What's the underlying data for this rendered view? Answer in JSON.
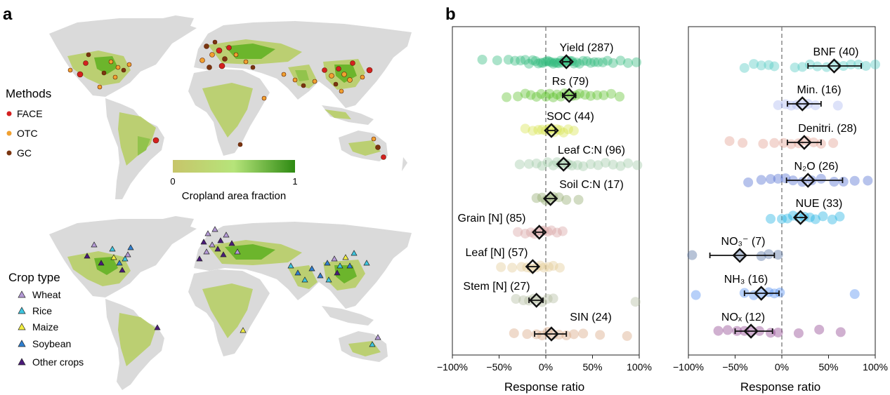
{
  "panel_a": {
    "label": "a",
    "methods_title": "Methods",
    "methods": [
      {
        "name": "FACE",
        "color": "#d42020"
      },
      {
        "name": "OTC",
        "color": "#f0a030"
      },
      {
        "name": "GC",
        "color": "#7a3510"
      }
    ],
    "colorbar": {
      "min_label": "0",
      "max_label": "1",
      "title": "Cropland area fraction",
      "color_low": "#c7c56a",
      "color_mid": "#b6e47a",
      "color_high": "#2e8a12"
    },
    "croptype_title": "Crop type",
    "crops": [
      {
        "name": "Wheat",
        "color": "#b49ad6"
      },
      {
        "name": "Rice",
        "color": "#3ec6e0"
      },
      {
        "name": "Maize",
        "color": "#f4f040"
      },
      {
        "name": "Soybean",
        "color": "#2f7fd0"
      },
      {
        "name": "Other crops",
        "color": "#4a1a7a"
      }
    ],
    "map_colors": {
      "land": "#dadada",
      "cropland": "#b9cf6a",
      "dense": "#63b21e"
    }
  },
  "panel_b": {
    "label": "b",
    "chart_data": [
      {
        "type": "scatter",
        "xlabel": "Response ratio",
        "xlim": [
          -100,
          100
        ],
        "xticks": [
          "−100%",
          "−50%",
          "0%",
          "50%",
          "100%"
        ],
        "rows": [
          {
            "label": "Yield (287)",
            "mean": 22,
            "ci": [
              18,
              26
            ],
            "color": "#2db87a",
            "points": [
              -68,
              -52,
              -40,
              -33,
              -27,
              -22,
              -18,
              -14,
              -11,
              -8,
              -5,
              -3,
              0,
              2,
              4,
              6,
              8,
              10,
              12,
              14,
              16,
              18,
              20,
              22,
              24,
              26,
              28,
              30,
              33,
              36,
              40,
              44,
              48,
              52,
              56,
              61,
              66,
              72,
              80,
              88,
              97
            ]
          },
          {
            "label": "Rs (79)",
            "mean": 25,
            "ci": [
              18,
              32
            ],
            "color": "#5cc02a",
            "points": [
              -42,
              -30,
              -22,
              -16,
              -10,
              -5,
              0,
              4,
              8,
              12,
              16,
              20,
              24,
              28,
              32,
              36,
              42,
              48,
              55,
              62,
              70,
              79
            ]
          },
          {
            "label": "SOC (44)",
            "mean": 6,
            "ci": [
              2,
              10
            ],
            "color": "#d6e34a",
            "points": [
              -22,
              -14,
              -8,
              -4,
              0,
              3,
              6,
              9,
              12,
              15,
              19,
              24,
              30
            ]
          },
          {
            "label": "Leaf C:N (96)",
            "mean": 19,
            "ci": [
              14,
              24
            ],
            "color": "#9ec8a6",
            "points": [
              -28,
              -18,
              -10,
              -4,
              2,
              8,
              12,
              16,
              20,
              24,
              28,
              34,
              40,
              48,
              56,
              64,
              72,
              80,
              88,
              98
            ]
          },
          {
            "label": "Soil C:N (17)",
            "mean": 5,
            "ci": [
              0,
              10
            ],
            "color": "#8fa86a",
            "points": [
              -10,
              -4,
              0,
              4,
              8,
              14,
              22,
              35
            ]
          },
          {
            "label": "Grain  [N] (85)",
            "mean": -7,
            "ci": [
              -11,
              -3
            ],
            "color": "#d6a0a0",
            "points": [
              -30,
              -22,
              -16,
              -12,
              -8,
              -5,
              -2,
              2,
              6,
              12,
              18
            ]
          },
          {
            "label": "Leaf  [N] (57)",
            "mean": -14,
            "ci": [
              -19,
              -9
            ],
            "color": "#e0c890",
            "points": [
              -48,
              -36,
              -26,
              -20,
              -15,
              -10,
              -6,
              -2,
              3,
              8,
              15
            ]
          },
          {
            "label": "Stem [N] (27)",
            "mean": -10,
            "ci": [
              -18,
              -3
            ],
            "color": "#b0b89a",
            "points": [
              -32,
              -24,
              -18,
              -13,
              -8,
              -4,
              2,
              8,
              96
            ]
          },
          {
            "label": "SIN (24)",
            "mean": 6,
            "ci": [
              -12,
              22
            ],
            "color": "#d6a27c",
            "points": [
              -34,
              -20,
              -10,
              -4,
              2,
              8,
              14,
              22,
              30,
              40,
              58,
              87
            ]
          }
        ]
      },
      {
        "type": "scatter",
        "xlabel": "Response ratio",
        "xlim": [
          -100,
          100
        ],
        "xticks": [
          "−100%",
          "−50%",
          "0%",
          "50%",
          "100%"
        ],
        "rows": [
          {
            "label": "BNF (40)",
            "mean": 56,
            "ci": [
              28,
              85
            ],
            "color": "#4ec8c0",
            "points": [
              -40,
              -30,
              -22,
              -14,
              -8,
              14,
              22,
              30,
              38,
              48,
              58,
              66,
              74,
              82,
              90,
              100
            ]
          },
          {
            "label": "Min. (16)",
            "mean": 22,
            "ci": [
              6,
              42
            ],
            "color": "#a9b6f0",
            "points": [
              -4,
              4,
              10,
              16,
              22,
              28,
              36,
              60
            ]
          },
          {
            "label": "Denitri. (28)",
            "mean": 24,
            "ci": [
              6,
              42
            ],
            "color": "#e29a8c",
            "points": [
              -56,
              -42,
              -20,
              -8,
              2,
              10,
              18,
              26,
              34,
              42,
              55
            ]
          },
          {
            "label": "N₂O (26)",
            "mean": 28,
            "ci": [
              5,
              65
            ],
            "color": "#4a6ad0",
            "points": [
              -36,
              -22,
              -12,
              -4,
              4,
              12,
              22,
              32,
              42,
              56,
              66,
              78,
              92
            ]
          },
          {
            "label": "NUE (33)",
            "mean": 20,
            "ci": [
              15,
              25
            ],
            "color": "#1ab0e0",
            "points": [
              -12,
              0,
              6,
              12,
              18,
              24,
              30,
              36,
              44,
              54,
              62
            ]
          },
          {
            "label": "NO₃⁻ (7)",
            "mean": -45,
            "ci": [
              -77,
              -8
            ],
            "color": "#4a6a9a",
            "points": [
              -96,
              -45,
              -22,
              -14,
              -4
            ]
          },
          {
            "label": "NH₃ (16)",
            "mean": -22,
            "ci": [
              -40,
              -3
            ],
            "color": "#4a8af0",
            "points": [
              -92,
              -40,
              -30,
              -22,
              -14,
              -8,
              -2,
              78
            ]
          },
          {
            "label": "NOₓ (12)",
            "mean": -33,
            "ci": [
              -50,
              -10
            ],
            "color": "#8a3a8a",
            "points": [
              -68,
              -58,
              -48,
              -40,
              -32,
              -24,
              -12,
              -4,
              18,
              40,
              63
            ]
          }
        ]
      }
    ]
  }
}
